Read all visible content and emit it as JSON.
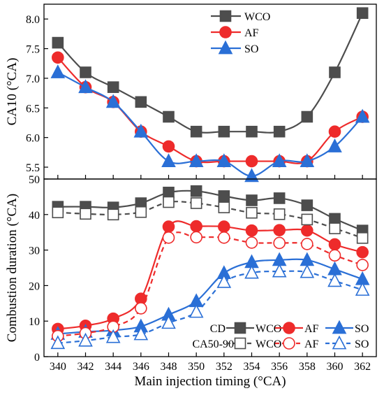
{
  "chart_data": [
    {
      "type": "line",
      "ylabel": "CA10 (°CA)",
      "xlim": [
        339,
        363
      ],
      "ylim": [
        5.3,
        8.25
      ],
      "yticks": [
        "5.5",
        "6.0",
        "6.5",
        "7.0",
        "7.5",
        "8.0"
      ],
      "ytick_values": [
        5.5,
        6.0,
        6.5,
        7.0,
        7.5,
        8.0
      ],
      "x": [
        340,
        342,
        344,
        346,
        348,
        350,
        352,
        354,
        356,
        358,
        360,
        362
      ],
      "legend_position": "top-center",
      "series": [
        {
          "name": "WCO",
          "color": "#4d4d4d",
          "marker": "square",
          "filled": true,
          "dashed": false,
          "values": [
            7.6,
            7.1,
            6.85,
            6.6,
            6.35,
            6.1,
            6.1,
            6.1,
            6.1,
            6.35,
            7.1,
            8.1
          ]
        },
        {
          "name": "AF",
          "color": "#ee2b2b",
          "marker": "circle",
          "filled": true,
          "dashed": false,
          "values": [
            7.35,
            6.85,
            6.6,
            6.1,
            5.85,
            5.6,
            5.6,
            5.6,
            5.6,
            5.6,
            6.1,
            6.35
          ]
        },
        {
          "name": "SO",
          "color": "#2a6fd6",
          "marker": "triangle",
          "filled": true,
          "dashed": false,
          "values": [
            7.1,
            6.85,
            6.6,
            6.1,
            5.6,
            5.6,
            5.6,
            5.35,
            5.6,
            5.6,
            5.85,
            6.35
          ]
        }
      ]
    },
    {
      "type": "line",
      "xlabel": "Main injection timing (°CA)",
      "ylabel": "Combustion duration (°CA)",
      "xlim": [
        339,
        363
      ],
      "ylim": [
        0,
        50
      ],
      "yticks": [
        "0",
        "10",
        "20",
        "30",
        "40",
        "50"
      ],
      "ytick_values": [
        0,
        10,
        20,
        30,
        40,
        50
      ],
      "xticks": [
        "340",
        "342",
        "344",
        "346",
        "348",
        "350",
        "352",
        "354",
        "356",
        "358",
        "360",
        "362"
      ],
      "xtick_values": [
        340,
        342,
        344,
        346,
        348,
        350,
        352,
        354,
        356,
        358,
        360,
        362
      ],
      "x": [
        340,
        342,
        344,
        346,
        348,
        350,
        352,
        354,
        356,
        358,
        360,
        362
      ],
      "legend_position": "bottom-right",
      "legend_rows": [
        {
          "label": "CD",
          "entries": [
            "WCO",
            "AF",
            "SO"
          ]
        },
        {
          "label": "CA50-90",
          "entries": [
            "WCO",
            "AF",
            "SO"
          ]
        }
      ],
      "series": [
        {
          "name": "WCO",
          "group": "CD",
          "color": "#4d4d4d",
          "marker": "square",
          "filled": true,
          "dashed": false,
          "values": [
            42.2,
            42.2,
            42.0,
            43.2,
            46.2,
            46.6,
            45.2,
            44.0,
            44.6,
            42.6,
            38.8,
            35.5
          ]
        },
        {
          "name": "AF",
          "group": "CD",
          "color": "#ee2b2b",
          "marker": "circle",
          "filled": true,
          "dashed": false,
          "values": [
            7.8,
            8.7,
            10.7,
            16.3,
            36.6,
            36.7,
            36.6,
            35.5,
            35.6,
            35.5,
            31.6,
            29.4
          ]
        },
        {
          "name": "SO",
          "group": "CD",
          "color": "#2a6fd6",
          "marker": "triangle",
          "filled": true,
          "dashed": false,
          "values": [
            6.4,
            7.0,
            7.4,
            8.5,
            11.8,
            15.6,
            23.5,
            26.6,
            27.2,
            27.2,
            24.6,
            21.8
          ]
        },
        {
          "name": "WCO",
          "group": "CA50-90",
          "color": "#4d4d4d",
          "marker": "square",
          "filled": false,
          "dashed": true,
          "values": [
            40.6,
            40.2,
            40.0,
            40.7,
            43.5,
            43.2,
            42.0,
            40.5,
            40.1,
            38.6,
            36.1,
            33.4
          ]
        },
        {
          "name": "AF",
          "group": "CA50-90",
          "color": "#ee2b2b",
          "marker": "circle",
          "filled": false,
          "dashed": true,
          "values": [
            5.8,
            6.6,
            8.4,
            13.6,
            33.5,
            33.6,
            33.5,
            32.1,
            32.0,
            31.7,
            28.5,
            25.8
          ]
        },
        {
          "name": "SO",
          "group": "CA50-90",
          "color": "#2a6fd6",
          "marker": "triangle",
          "filled": false,
          "dashed": true,
          "values": [
            3.8,
            4.5,
            5.5,
            6.3,
            9.5,
            12.6,
            21.0,
            23.6,
            24.0,
            23.8,
            21.3,
            18.8
          ]
        }
      ]
    }
  ]
}
